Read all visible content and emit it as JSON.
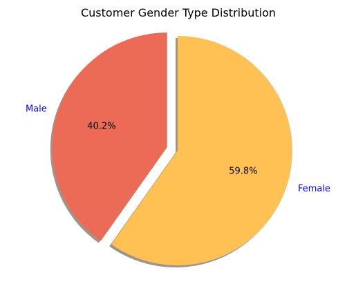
{
  "chart_data": {
    "type": "pie",
    "title": "Customer Gender Type Distribution",
    "label_color": "#0000ff",
    "shadow_color": "#9e948d",
    "slices": [
      {
        "label": "Male",
        "value": 40.2,
        "display": "40.2%",
        "color": "#ec6b56",
        "exploded": true
      },
      {
        "label": "Female",
        "value": 59.8,
        "display": "59.8%",
        "color": "#ffc154",
        "exploded": false
      }
    ]
  }
}
